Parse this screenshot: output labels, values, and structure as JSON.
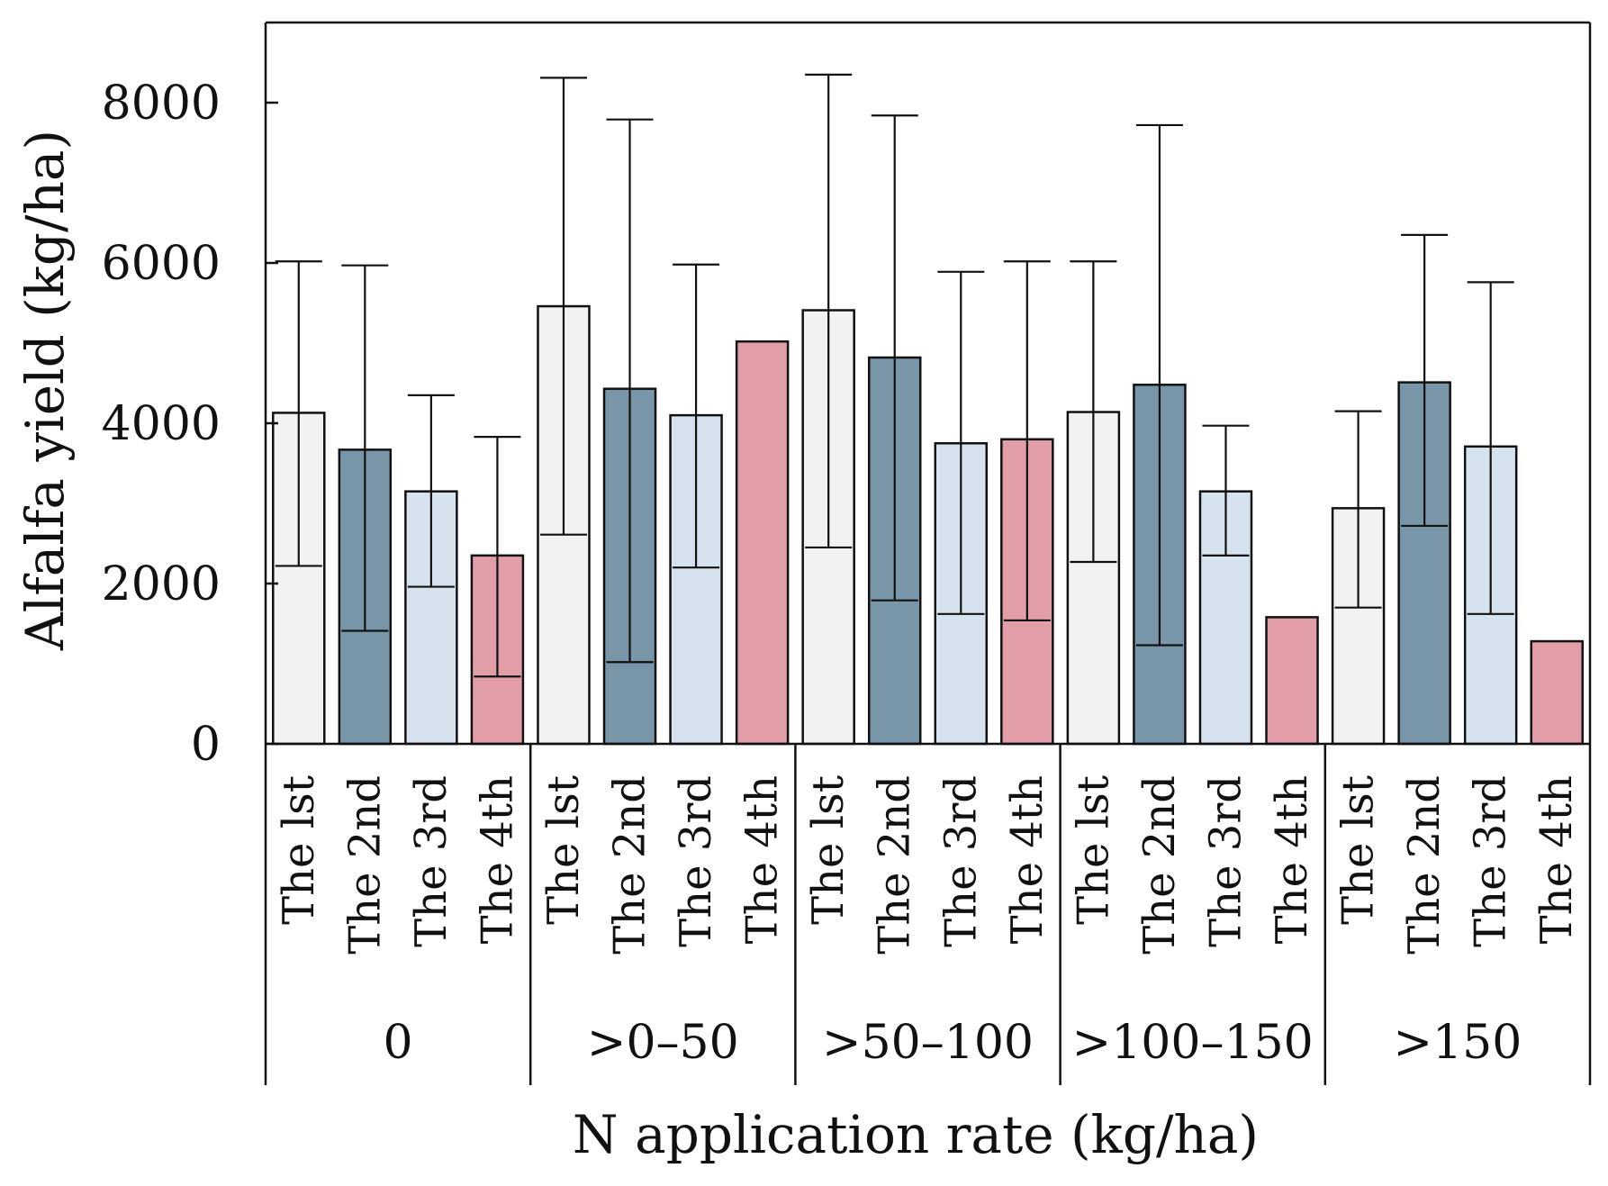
{
  "chart_data": {
    "type": "bar",
    "xlabel": "N application rate (kg/ha)",
    "ylabel": "Alfalfa  yield  (kg/ha)",
    "ylim": [
      0,
      9000
    ],
    "yticks": [
      "0",
      "2000",
      "4000",
      "6000",
      "8000"
    ],
    "grid": false,
    "bar_labels": [
      "The lst",
      "The 2nd",
      "The 3rd",
      "The 4th"
    ],
    "colors": [
      "#f2f2f2",
      "#7896a8",
      "#d6e3ef",
      "#e29ea8"
    ],
    "groups": [
      {
        "label": "0",
        "bars": [
          {
            "value": 4130,
            "err_low": 2220,
            "err_high": 6020
          },
          {
            "value": 3670,
            "err_low": 1410,
            "err_high": 5970
          },
          {
            "value": 3150,
            "err_low": 1960,
            "err_high": 4350
          },
          {
            "value": 2350,
            "err_low": 840,
            "err_high": 3830
          }
        ]
      },
      {
        "label": ">0–50",
        "bars": [
          {
            "value": 5460,
            "err_low": 2610,
            "err_high": 8310
          },
          {
            "value": 4430,
            "err_low": 1020,
            "err_high": 7790
          },
          {
            "value": 4100,
            "err_low": 2200,
            "err_high": 5980
          },
          {
            "value": 5020
          }
        ]
      },
      {
        "label": ">50–100",
        "bars": [
          {
            "value": 5410,
            "err_low": 2450,
            "err_high": 8350
          },
          {
            "value": 4820,
            "err_low": 1790,
            "err_high": 7840
          },
          {
            "value": 3750,
            "err_low": 1620,
            "err_high": 5890
          },
          {
            "value": 3800,
            "err_low": 1540,
            "err_high": 6020
          }
        ]
      },
      {
        "label": ">100–150",
        "bars": [
          {
            "value": 4140,
            "err_low": 2270,
            "err_high": 6020
          },
          {
            "value": 4480,
            "err_low": 1230,
            "err_high": 7720
          },
          {
            "value": 3150,
            "err_low": 2350,
            "err_high": 3970
          },
          {
            "value": 1580
          }
        ]
      },
      {
        "label": ">150",
        "bars": [
          {
            "value": 2940,
            "err_low": 1700,
            "err_high": 4150
          },
          {
            "value": 4510,
            "err_low": 2720,
            "err_high": 6350
          },
          {
            "value": 3710,
            "err_low": 1620,
            "err_high": 5760
          },
          {
            "value": 1280
          }
        ]
      }
    ]
  }
}
